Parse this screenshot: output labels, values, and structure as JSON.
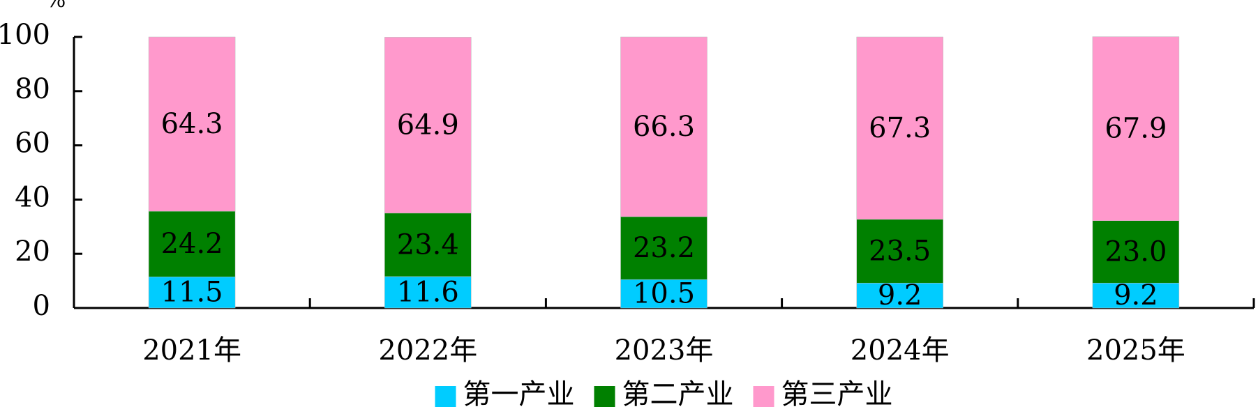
{
  "chart_data": {
    "type": "stacked_bar",
    "y_label": "%",
    "categories": [
      "2021年",
      "2022年",
      "2023年",
      "2024年",
      "2025年"
    ],
    "series": [
      {
        "name": "第一产业",
        "color": "#00ccff",
        "values": [
          11.5,
          11.6,
          10.5,
          9.2,
          9.2
        ]
      },
      {
        "name": "第二产业",
        "color": "#008000",
        "values": [
          24.2,
          23.4,
          23.2,
          23.5,
          23.0
        ],
        "value_labels": [
          "24.2",
          "23.4",
          "23.2",
          "23.5",
          "23.0"
        ]
      },
      {
        "name": "第三产业",
        "color": "#ff99cc",
        "values": [
          64.3,
          64.9,
          66.3,
          67.3,
          67.9
        ]
      }
    ],
    "ylim": [
      0,
      100
    ],
    "yticks": [
      0,
      20,
      40,
      60,
      80,
      100
    ],
    "legend": "bottom"
  }
}
